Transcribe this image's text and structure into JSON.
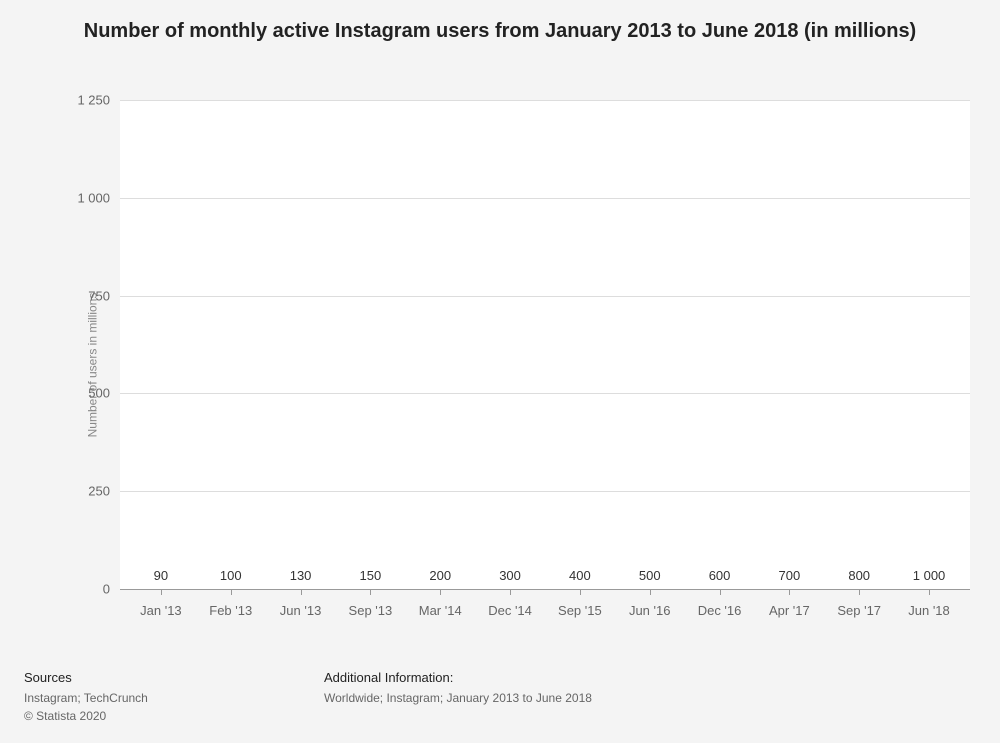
{
  "title": "Number of monthly active Instagram users from January 2013 to June 2018 (in millions)",
  "chart": {
    "type": "bar",
    "ylabel": "Number of users in millions",
    "ylim": [
      0,
      1250
    ],
    "ytick_step": 250,
    "yticks": [
      0,
      250,
      500,
      750,
      1000,
      1250
    ],
    "ytick_labels": [
      "0",
      "250",
      "500",
      "750",
      "1 000",
      "1 250"
    ],
    "background_color": "#ffffff",
    "page_background": "#f4f4f4",
    "grid_color": "#dddddd",
    "axis_color": "#999999",
    "bar_color": "#2a7ed7",
    "bar_width": 0.68,
    "label_fontsize": 12,
    "tick_fontsize": 13,
    "categories": [
      "Jan '13",
      "Feb '13",
      "Jun '13",
      "Sep '13",
      "Mar '14",
      "Dec '14",
      "Sep '15",
      "Jun '16",
      "Dec '16",
      "Apr '17",
      "Sep '17",
      "Jun '18"
    ],
    "values": [
      90,
      100,
      130,
      150,
      200,
      300,
      400,
      500,
      600,
      700,
      800,
      1000
    ],
    "value_labels": [
      "90",
      "100",
      "130",
      "150",
      "200",
      "300",
      "400",
      "500",
      "600",
      "700",
      "800",
      "1 000"
    ]
  },
  "footer": {
    "sources_heading": "Sources",
    "sources_line1": "Instagram; TechCrunch",
    "sources_line2": "© Statista 2020",
    "info_heading": "Additional Information:",
    "info_line": "Worldwide; Instagram; January 2013 to June 2018"
  }
}
